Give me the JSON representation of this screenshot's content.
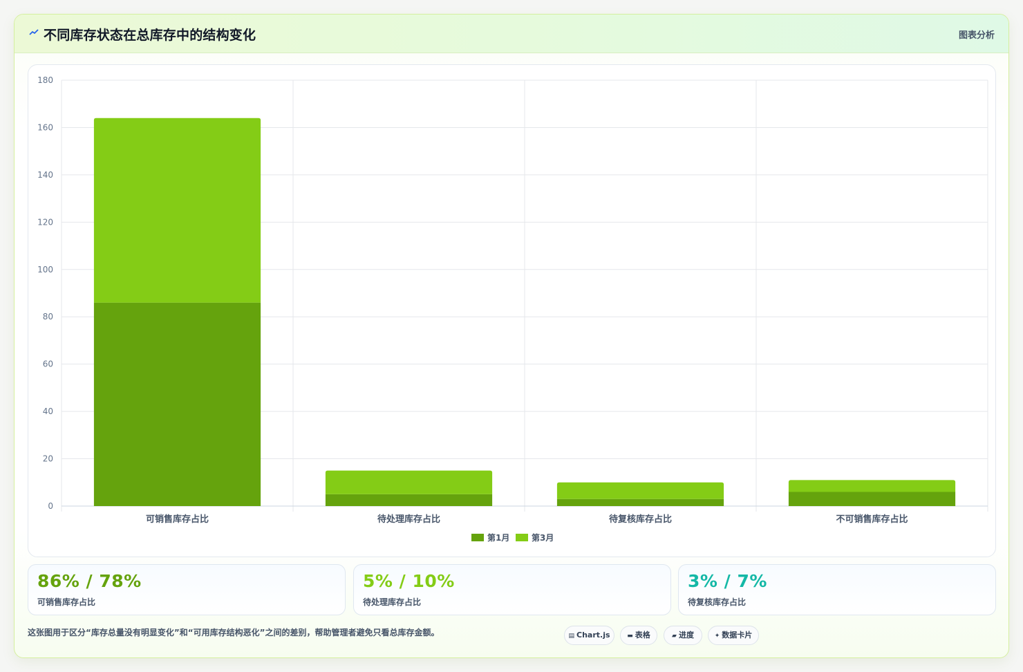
{
  "header": {
    "title": "不同库存状态在总库存中的结构变化",
    "link_label": "图表分析",
    "icon": "trend-icon"
  },
  "chart_data": {
    "type": "bar",
    "stacked": true,
    "categories": [
      "可销售库存占比",
      "待处理库存占比",
      "待复核库存占比",
      "不可销售库存占比"
    ],
    "series": [
      {
        "name": "第1月",
        "values": [
          86,
          5,
          3,
          6
        ],
        "color": "#65a30d"
      },
      {
        "name": "第3月",
        "values": [
          78,
          10,
          7,
          5
        ],
        "color": "#84cc16"
      }
    ],
    "ylim": [
      0,
      180
    ],
    "yticks": [
      0,
      20,
      40,
      60,
      80,
      100,
      120,
      140,
      160,
      180
    ],
    "grid": true,
    "legend": "bottom"
  },
  "stats": [
    {
      "value": "86% / 78%",
      "label": "可销售库存占比",
      "color": "#65a30d"
    },
    {
      "value": "5% / 10%",
      "label": "待处理库存占比",
      "color": "#84cc16"
    },
    {
      "value": "3% / 7%",
      "label": "待复核库存占比",
      "color": "#14b8a6"
    }
  ],
  "footnote": "这张图用于区分“库存总量没有明显变化”和“可用库存结构恶化”之间的差别，帮助管理者避免只看总库存金额。",
  "chips": [
    {
      "icon": "▤",
      "label": "Chart.js"
    },
    {
      "icon": "▬",
      "label": "表格"
    },
    {
      "icon": "▰",
      "label": "进度"
    },
    {
      "icon": "✦",
      "label": "数据卡片"
    }
  ]
}
